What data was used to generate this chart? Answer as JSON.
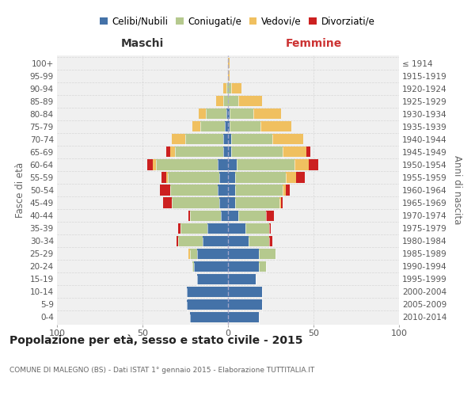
{
  "age_groups": [
    "0-4",
    "5-9",
    "10-14",
    "15-19",
    "20-24",
    "25-29",
    "30-34",
    "35-39",
    "40-44",
    "45-49",
    "50-54",
    "55-59",
    "60-64",
    "65-69",
    "70-74",
    "75-79",
    "80-84",
    "85-89",
    "90-94",
    "95-99",
    "100+"
  ],
  "birth_years": [
    "2010-2014",
    "2005-2009",
    "2000-2004",
    "1995-1999",
    "1990-1994",
    "1985-1989",
    "1980-1984",
    "1975-1979",
    "1970-1974",
    "1965-1969",
    "1960-1964",
    "1955-1959",
    "1950-1954",
    "1945-1949",
    "1940-1944",
    "1935-1939",
    "1930-1934",
    "1925-1929",
    "1920-1924",
    "1915-1919",
    "≤ 1914"
  ],
  "colors": {
    "celibi": "#4472a8",
    "coniugati": "#b5c98e",
    "vedovi": "#f0c060",
    "divorziati": "#cc2020"
  },
  "maschi": {
    "celibi": [
      22,
      24,
      24,
      18,
      20,
      18,
      15,
      12,
      4,
      5,
      6,
      5,
      6,
      3,
      3,
      2,
      1,
      0,
      0,
      0,
      0
    ],
    "coniugati": [
      0,
      0,
      0,
      0,
      1,
      4,
      14,
      16,
      18,
      28,
      28,
      30,
      36,
      28,
      22,
      14,
      12,
      3,
      1,
      0,
      0
    ],
    "vedovi": [
      0,
      0,
      0,
      0,
      0,
      1,
      0,
      0,
      0,
      0,
      0,
      1,
      2,
      3,
      8,
      5,
      4,
      4,
      2,
      0,
      0
    ],
    "divorziati": [
      0,
      0,
      0,
      0,
      0,
      0,
      1,
      1,
      1,
      5,
      6,
      3,
      3,
      2,
      0,
      0,
      0,
      0,
      0,
      0,
      0
    ]
  },
  "femmine": {
    "celibi": [
      18,
      20,
      20,
      16,
      18,
      18,
      12,
      10,
      6,
      4,
      4,
      4,
      5,
      2,
      2,
      1,
      1,
      0,
      0,
      0,
      0
    ],
    "coniugati": [
      0,
      0,
      0,
      0,
      4,
      10,
      12,
      14,
      16,
      26,
      28,
      30,
      34,
      30,
      24,
      18,
      14,
      6,
      2,
      0,
      0
    ],
    "vedovi": [
      0,
      0,
      0,
      0,
      0,
      0,
      0,
      0,
      0,
      1,
      2,
      6,
      8,
      14,
      18,
      18,
      16,
      14,
      6,
      1,
      1
    ],
    "divorziati": [
      0,
      0,
      0,
      0,
      0,
      0,
      2,
      1,
      5,
      1,
      2,
      5,
      6,
      2,
      0,
      0,
      0,
      0,
      0,
      0,
      0
    ]
  },
  "xlim": 100,
  "title": "Popolazione per età, sesso e stato civile - 2015",
  "subtitle": "COMUNE DI MALEGNO (BS) - Dati ISTAT 1° gennaio 2015 - Elaborazione TUTTITALIA.IT",
  "ylabel_left": "Fasce di età",
  "ylabel_right": "Anni di nascita",
  "xlabel_left": "Maschi",
  "xlabel_right": "Femmine",
  "legend_labels": [
    "Celibi/Nubili",
    "Coniugati/e",
    "Vedovi/e",
    "Divorziati/e"
  ],
  "bg_color": "#f0f0f0",
  "grid_color": "#cccccc"
}
